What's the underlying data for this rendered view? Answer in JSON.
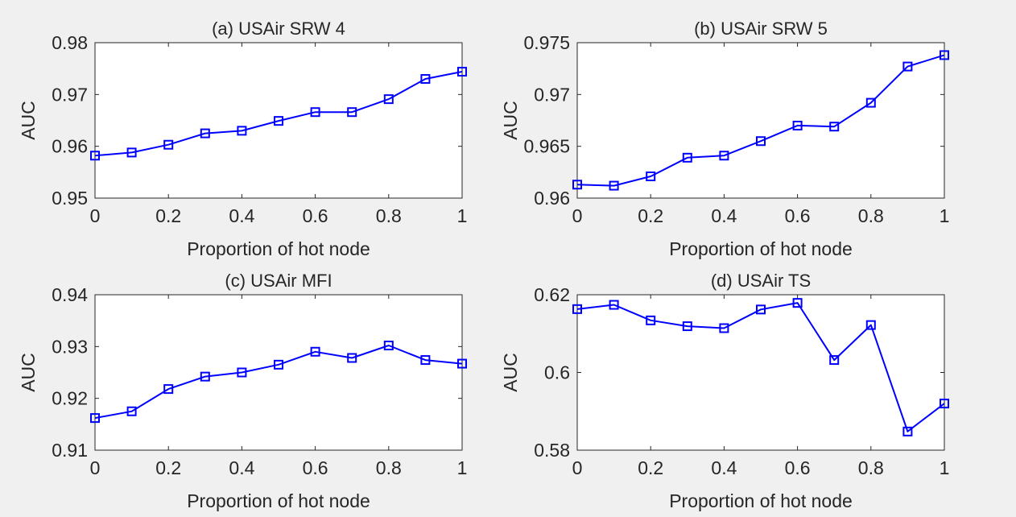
{
  "colors": {
    "background": "#f0f0f0",
    "axes_face": "#ffffff",
    "axes_line": "#262626",
    "series": "#0000ff"
  },
  "chart_data": [
    {
      "type": "line",
      "title": "(a) USAir SRW 4",
      "xlabel": "Proportion of hot node",
      "ylabel": "AUC",
      "xlim": [
        0,
        1
      ],
      "ylim": [
        0.95,
        0.98
      ],
      "xticks": [
        0,
        0.2,
        0.4,
        0.6,
        0.8,
        1
      ],
      "xtick_labels": [
        "0",
        "0.2",
        "0.4",
        "0.6",
        "0.8",
        "1"
      ],
      "yticks": [
        0.95,
        0.96,
        0.97,
        0.98
      ],
      "ytick_labels": [
        "0.95",
        "0.96",
        "0.97",
        "0.98"
      ],
      "marker": "square",
      "grid": false,
      "series": [
        {
          "x": [
            0,
            0.1,
            0.2,
            0.3,
            0.4,
            0.5,
            0.6,
            0.7,
            0.8,
            0.9,
            1
          ],
          "y": [
            0.9582,
            0.9588,
            0.9603,
            0.9625,
            0.963,
            0.9649,
            0.9666,
            0.9666,
            0.9691,
            0.973,
            0.9744
          ]
        }
      ]
    },
    {
      "type": "line",
      "title": "(b) USAir SRW 5",
      "xlabel": "Proportion of hot node",
      "ylabel": "AUC",
      "xlim": [
        0,
        1
      ],
      "ylim": [
        0.96,
        0.975
      ],
      "xticks": [
        0,
        0.2,
        0.4,
        0.6,
        0.8,
        1
      ],
      "xtick_labels": [
        "0",
        "0.2",
        "0.4",
        "0.6",
        "0.8",
        "1"
      ],
      "yticks": [
        0.96,
        0.965,
        0.97,
        0.975
      ],
      "ytick_labels": [
        "0.96",
        "0.965",
        "0.97",
        "0.975"
      ],
      "marker": "square",
      "grid": false,
      "series": [
        {
          "x": [
            0,
            0.1,
            0.2,
            0.3,
            0.4,
            0.5,
            0.6,
            0.7,
            0.8,
            0.9,
            1
          ],
          "y": [
            0.9613,
            0.9612,
            0.9621,
            0.9639,
            0.9641,
            0.9655,
            0.967,
            0.9669,
            0.9692,
            0.9727,
            0.9738
          ]
        }
      ]
    },
    {
      "type": "line",
      "title": "(c) USAir MFI",
      "xlabel": "Proportion of hot node",
      "ylabel": "AUC",
      "xlim": [
        0,
        1
      ],
      "ylim": [
        0.91,
        0.94
      ],
      "xticks": [
        0,
        0.2,
        0.4,
        0.6,
        0.8,
        1
      ],
      "xtick_labels": [
        "0",
        "0.2",
        "0.4",
        "0.6",
        "0.8",
        "1"
      ],
      "yticks": [
        0.91,
        0.92,
        0.93,
        0.94
      ],
      "ytick_labels": [
        "0.91",
        "0.92",
        "0.93",
        "0.94"
      ],
      "marker": "square",
      "grid": false,
      "series": [
        {
          "x": [
            0,
            0.1,
            0.2,
            0.3,
            0.4,
            0.5,
            0.6,
            0.7,
            0.8,
            0.9,
            1
          ],
          "y": [
            0.9162,
            0.9175,
            0.9218,
            0.9242,
            0.925,
            0.9265,
            0.929,
            0.9278,
            0.9302,
            0.9274,
            0.9267
          ]
        }
      ]
    },
    {
      "type": "line",
      "title": "(d) USAir TS",
      "xlabel": "Proportion of hot node",
      "ylabel": "AUC",
      "xlim": [
        0,
        1
      ],
      "ylim": [
        0.58,
        0.62
      ],
      "xticks": [
        0,
        0.2,
        0.4,
        0.6,
        0.8,
        1
      ],
      "xtick_labels": [
        "0",
        "0.2",
        "0.4",
        "0.6",
        "0.8",
        "1"
      ],
      "yticks": [
        0.58,
        0.6,
        0.62
      ],
      "ytick_labels": [
        "0.58",
        "0.6",
        "0.62"
      ],
      "marker": "square",
      "grid": false,
      "series": [
        {
          "x": [
            0,
            0.1,
            0.2,
            0.3,
            0.4,
            0.5,
            0.6,
            0.7,
            0.8,
            0.9,
            1
          ],
          "y": [
            0.6163,
            0.6174,
            0.6134,
            0.6119,
            0.6114,
            0.6162,
            0.6179,
            0.6032,
            0.6122,
            0.5848,
            0.592
          ]
        }
      ]
    }
  ]
}
